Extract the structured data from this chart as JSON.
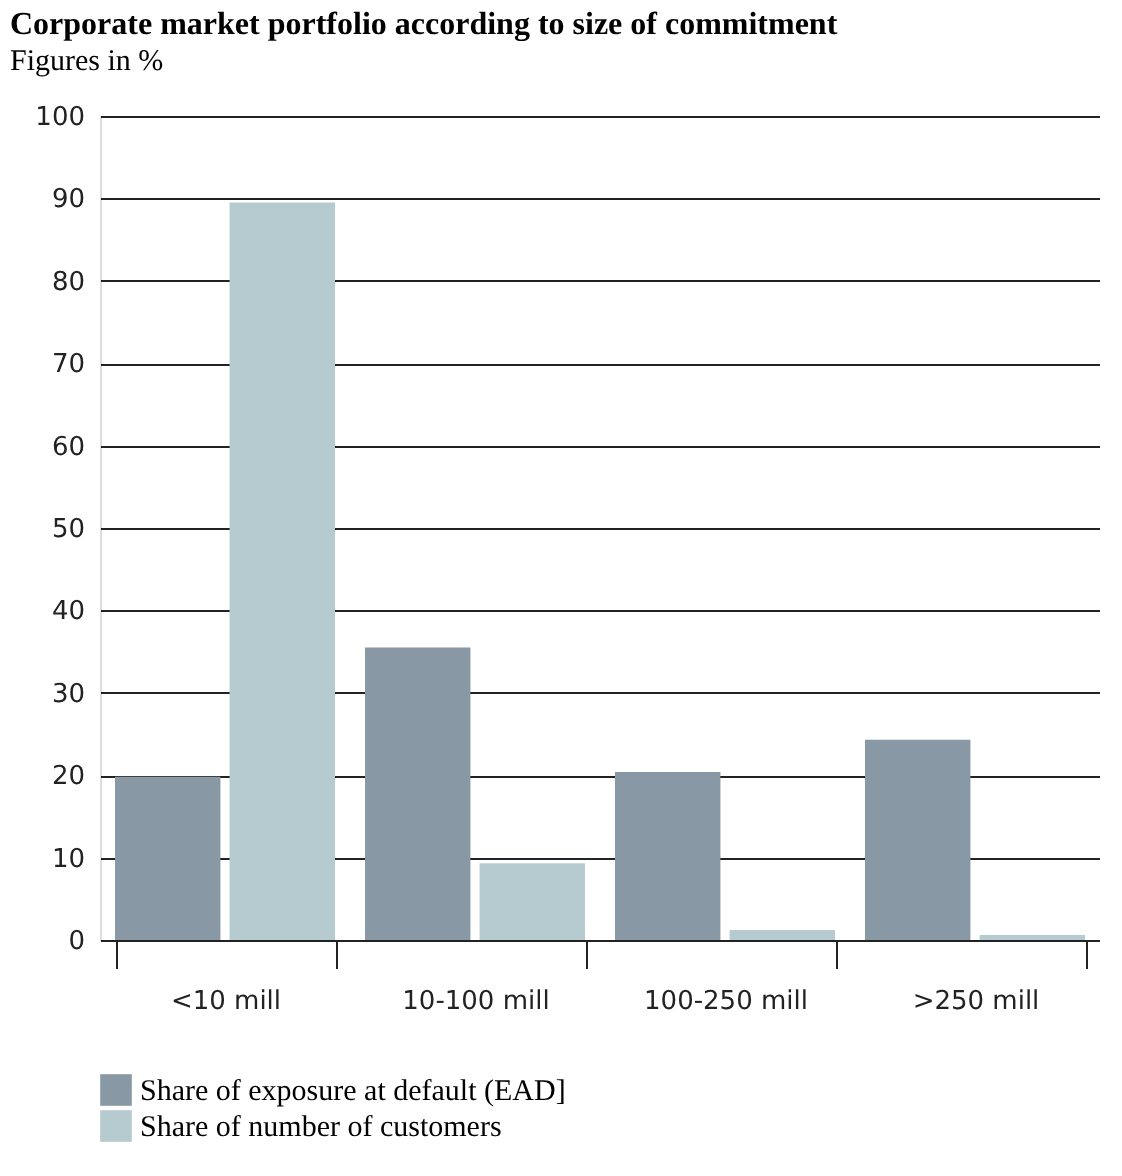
{
  "chart_data": {
    "type": "bar",
    "title": "Corporate market portfolio according to size of commitment",
    "subtitle": "Figures in %",
    "categories": [
      "<10 mill",
      "10-100 mill",
      "100-250 mill",
      ">250 mill"
    ],
    "series": [
      {
        "name": "Share of exposure at default (EAD]",
        "color": "#8898a4",
        "values": [
          19.8,
          35.5,
          20.4,
          24.3
        ]
      },
      {
        "name": "Share of number of customers",
        "color": "#b6cbd0",
        "values": [
          89.5,
          9.3,
          1.2,
          0.6
        ]
      }
    ],
    "ylim": [
      0,
      100
    ],
    "yticks": [
      0,
      10,
      20,
      30,
      40,
      50,
      60,
      70,
      80,
      90,
      100
    ],
    "grid": "y",
    "legend": "bottom left"
  }
}
